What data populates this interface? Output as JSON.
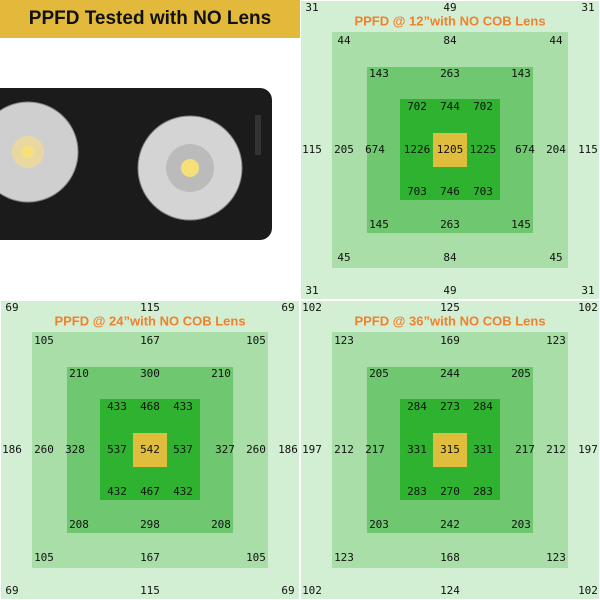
{
  "header": {
    "title": "PPFD Tested with NO Lens"
  },
  "panels": [
    {
      "title": "PPFD @ 12”with NO COB Lens",
      "rings": [
        {
          "top": [
            31,
            49,
            31
          ],
          "middle": [
            115,
            115
          ],
          "bottom": [
            31,
            49,
            31
          ]
        },
        {
          "top": [
            44,
            84,
            44
          ],
          "middle": [
            205,
            204
          ],
          "bottom": [
            45,
            84,
            45
          ]
        },
        {
          "top": [
            143,
            263,
            143
          ],
          "middle": [
            674,
            674
          ],
          "bottom": [
            145,
            263,
            145
          ]
        }
      ],
      "core": [
        [
          702,
          744,
          702
        ],
        [
          1226,
          1205,
          1225
        ],
        [
          703,
          746,
          703
        ]
      ]
    },
    {
      "title": "PPFD @ 24”with NO COB Lens",
      "rings": [
        {
          "top": [
            69,
            115,
            69
          ],
          "middle": [
            186,
            186
          ],
          "bottom": [
            69,
            115,
            69
          ]
        },
        {
          "top": [
            105,
            167,
            105
          ],
          "middle": [
            260,
            260
          ],
          "bottom": [
            105,
            167,
            105
          ]
        },
        {
          "top": [
            210,
            300,
            210
          ],
          "middle": [
            328,
            327
          ],
          "bottom": [
            208,
            298,
            208
          ]
        }
      ],
      "core": [
        [
          433,
          468,
          433
        ],
        [
          537,
          542,
          537
        ],
        [
          432,
          467,
          432
        ]
      ]
    },
    {
      "title": "PPFD @ 36”with NO COB Lens",
      "rings": [
        {
          "top": [
            102,
            125,
            102
          ],
          "middle": [
            197,
            197
          ],
          "bottom": [
            102,
            124,
            102
          ]
        },
        {
          "top": [
            123,
            169,
            123
          ],
          "middle": [
            212,
            212
          ],
          "bottom": [
            123,
            168,
            123
          ]
        },
        {
          "top": [
            205,
            244,
            205
          ],
          "middle": [
            217,
            217
          ],
          "bottom": [
            203,
            242,
            203
          ]
        }
      ],
      "core": [
        [
          284,
          273,
          284
        ],
        [
          331,
          315,
          331
        ],
        [
          283,
          270,
          283
        ]
      ]
    }
  ]
}
